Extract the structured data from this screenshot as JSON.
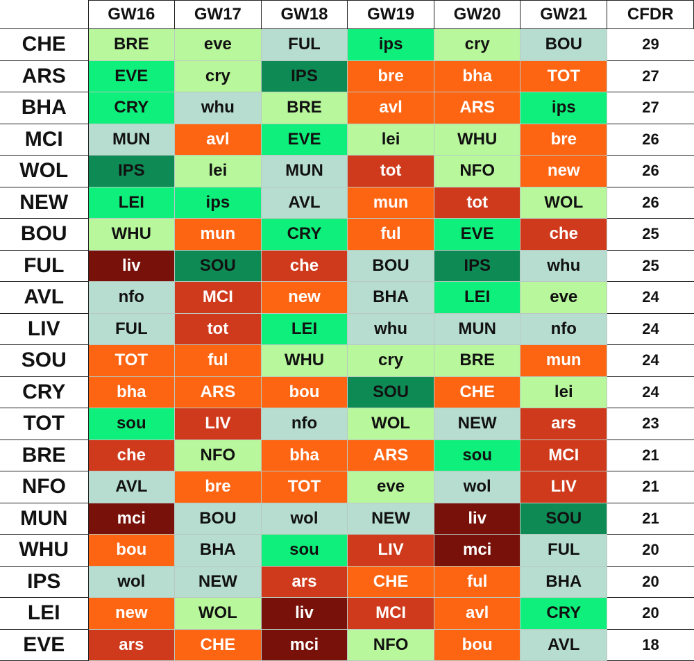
{
  "headers": [
    "",
    "GW16",
    "GW17",
    "GW18",
    "GW19",
    "GW20",
    "GW21",
    "CFDR"
  ],
  "difficulty_colors": {
    "l1": "#b7ddd0",
    "l2": "#b8f79b",
    "l3": "#0ef07b",
    "l4": "#0e8a55",
    "h1": "#fd6513",
    "h2": "#cf3a1c",
    "h3": "#771109"
  },
  "rows": [
    {
      "team": "CHE",
      "fixtures": [
        {
          "t": "BRE",
          "c": "l2"
        },
        {
          "t": "eve",
          "c": "l2"
        },
        {
          "t": "FUL",
          "c": "l1"
        },
        {
          "t": "ips",
          "c": "l3"
        },
        {
          "t": "cry",
          "c": "l2"
        },
        {
          "t": "BOU",
          "c": "l1"
        }
      ],
      "cfdr": "29"
    },
    {
      "team": "ARS",
      "fixtures": [
        {
          "t": "EVE",
          "c": "l3"
        },
        {
          "t": "cry",
          "c": "l2"
        },
        {
          "t": "IPS",
          "c": "l4"
        },
        {
          "t": "bre",
          "c": "h1"
        },
        {
          "t": "bha",
          "c": "h1"
        },
        {
          "t": "TOT",
          "c": "h1"
        }
      ],
      "cfdr": "27"
    },
    {
      "team": "BHA",
      "fixtures": [
        {
          "t": "CRY",
          "c": "l3"
        },
        {
          "t": "whu",
          "c": "l1"
        },
        {
          "t": "BRE",
          "c": "l2"
        },
        {
          "t": "avl",
          "c": "h1"
        },
        {
          "t": "ARS",
          "c": "h1"
        },
        {
          "t": "ips",
          "c": "l3"
        }
      ],
      "cfdr": "27"
    },
    {
      "team": "MCI",
      "fixtures": [
        {
          "t": "MUN",
          "c": "l1"
        },
        {
          "t": "avl",
          "c": "h1"
        },
        {
          "t": "EVE",
          "c": "l3"
        },
        {
          "t": "lei",
          "c": "l2"
        },
        {
          "t": "WHU",
          "c": "l2"
        },
        {
          "t": "bre",
          "c": "h1"
        }
      ],
      "cfdr": "26"
    },
    {
      "team": "WOL",
      "fixtures": [
        {
          "t": "IPS",
          "c": "l4"
        },
        {
          "t": "lei",
          "c": "l2"
        },
        {
          "t": "MUN",
          "c": "l1"
        },
        {
          "t": "tot",
          "c": "h2"
        },
        {
          "t": "NFO",
          "c": "l2"
        },
        {
          "t": "new",
          "c": "h1"
        }
      ],
      "cfdr": "26"
    },
    {
      "team": "NEW",
      "fixtures": [
        {
          "t": "LEI",
          "c": "l3"
        },
        {
          "t": "ips",
          "c": "l3"
        },
        {
          "t": "AVL",
          "c": "l1"
        },
        {
          "t": "mun",
          "c": "h1"
        },
        {
          "t": "tot",
          "c": "h2"
        },
        {
          "t": "WOL",
          "c": "l2"
        }
      ],
      "cfdr": "26"
    },
    {
      "team": "BOU",
      "fixtures": [
        {
          "t": "WHU",
          "c": "l2"
        },
        {
          "t": "mun",
          "c": "h1"
        },
        {
          "t": "CRY",
          "c": "l3"
        },
        {
          "t": "ful",
          "c": "h1"
        },
        {
          "t": "EVE",
          "c": "l3"
        },
        {
          "t": "che",
          "c": "h2"
        }
      ],
      "cfdr": "25"
    },
    {
      "team": "FUL",
      "fixtures": [
        {
          "t": "liv",
          "c": "h3"
        },
        {
          "t": "SOU",
          "c": "l4"
        },
        {
          "t": "che",
          "c": "h2"
        },
        {
          "t": "BOU",
          "c": "l1"
        },
        {
          "t": "IPS",
          "c": "l4"
        },
        {
          "t": "whu",
          "c": "l1"
        }
      ],
      "cfdr": "25"
    },
    {
      "team": "AVL",
      "fixtures": [
        {
          "t": "nfo",
          "c": "l1"
        },
        {
          "t": "MCI",
          "c": "h2"
        },
        {
          "t": "new",
          "c": "h1"
        },
        {
          "t": "BHA",
          "c": "l1"
        },
        {
          "t": "LEI",
          "c": "l3"
        },
        {
          "t": "eve",
          "c": "l2"
        }
      ],
      "cfdr": "24"
    },
    {
      "team": "LIV",
      "fixtures": [
        {
          "t": "FUL",
          "c": "l1"
        },
        {
          "t": "tot",
          "c": "h2"
        },
        {
          "t": "LEI",
          "c": "l3"
        },
        {
          "t": "whu",
          "c": "l1"
        },
        {
          "t": "MUN",
          "c": "l1"
        },
        {
          "t": "nfo",
          "c": "l1"
        }
      ],
      "cfdr": "24"
    },
    {
      "team": "SOU",
      "fixtures": [
        {
          "t": "TOT",
          "c": "h1"
        },
        {
          "t": "ful",
          "c": "h1"
        },
        {
          "t": "WHU",
          "c": "l2"
        },
        {
          "t": "cry",
          "c": "l2"
        },
        {
          "t": "BRE",
          "c": "l2"
        },
        {
          "t": "mun",
          "c": "h1"
        }
      ],
      "cfdr": "24"
    },
    {
      "team": "CRY",
      "fixtures": [
        {
          "t": "bha",
          "c": "h1"
        },
        {
          "t": "ARS",
          "c": "h1"
        },
        {
          "t": "bou",
          "c": "h1"
        },
        {
          "t": "SOU",
          "c": "l4"
        },
        {
          "t": "CHE",
          "c": "h1"
        },
        {
          "t": "lei",
          "c": "l2"
        }
      ],
      "cfdr": "24"
    },
    {
      "team": "TOT",
      "fixtures": [
        {
          "t": "sou",
          "c": "l3"
        },
        {
          "t": "LIV",
          "c": "h2"
        },
        {
          "t": "nfo",
          "c": "l1"
        },
        {
          "t": "WOL",
          "c": "l2"
        },
        {
          "t": "NEW",
          "c": "l1"
        },
        {
          "t": "ars",
          "c": "h2"
        }
      ],
      "cfdr": "23"
    },
    {
      "team": "BRE",
      "fixtures": [
        {
          "t": "che",
          "c": "h2"
        },
        {
          "t": "NFO",
          "c": "l2"
        },
        {
          "t": "bha",
          "c": "h1"
        },
        {
          "t": "ARS",
          "c": "h1"
        },
        {
          "t": "sou",
          "c": "l3"
        },
        {
          "t": "MCI",
          "c": "h2"
        }
      ],
      "cfdr": "21"
    },
    {
      "team": "NFO",
      "fixtures": [
        {
          "t": "AVL",
          "c": "l1"
        },
        {
          "t": "bre",
          "c": "h1"
        },
        {
          "t": "TOT",
          "c": "h1"
        },
        {
          "t": "eve",
          "c": "l2"
        },
        {
          "t": "wol",
          "c": "l1"
        },
        {
          "t": "LIV",
          "c": "h2"
        }
      ],
      "cfdr": "21"
    },
    {
      "team": "MUN",
      "fixtures": [
        {
          "t": "mci",
          "c": "h3"
        },
        {
          "t": "BOU",
          "c": "l1"
        },
        {
          "t": "wol",
          "c": "l1"
        },
        {
          "t": "NEW",
          "c": "l1"
        },
        {
          "t": "liv",
          "c": "h3"
        },
        {
          "t": "SOU",
          "c": "l4"
        }
      ],
      "cfdr": "21"
    },
    {
      "team": "WHU",
      "fixtures": [
        {
          "t": "bou",
          "c": "h1"
        },
        {
          "t": "BHA",
          "c": "l1"
        },
        {
          "t": "sou",
          "c": "l3"
        },
        {
          "t": "LIV",
          "c": "h2"
        },
        {
          "t": "mci",
          "c": "h3"
        },
        {
          "t": "FUL",
          "c": "l1"
        }
      ],
      "cfdr": "20"
    },
    {
      "team": "IPS",
      "fixtures": [
        {
          "t": "wol",
          "c": "l1"
        },
        {
          "t": "NEW",
          "c": "l1"
        },
        {
          "t": "ars",
          "c": "h2"
        },
        {
          "t": "CHE",
          "c": "h1"
        },
        {
          "t": "ful",
          "c": "h1"
        },
        {
          "t": "BHA",
          "c": "l1"
        }
      ],
      "cfdr": "20"
    },
    {
      "team": "LEI",
      "fixtures": [
        {
          "t": "new",
          "c": "h1"
        },
        {
          "t": "WOL",
          "c": "l2"
        },
        {
          "t": "liv",
          "c": "h3"
        },
        {
          "t": "MCI",
          "c": "h2"
        },
        {
          "t": "avl",
          "c": "h1"
        },
        {
          "t": "CRY",
          "c": "l3"
        }
      ],
      "cfdr": "20"
    },
    {
      "team": "EVE",
      "fixtures": [
        {
          "t": "ars",
          "c": "h2"
        },
        {
          "t": "CHE",
          "c": "h1"
        },
        {
          "t": "mci",
          "c": "h3"
        },
        {
          "t": "NFO",
          "c": "l2"
        },
        {
          "t": "bou",
          "c": "h1"
        },
        {
          "t": "AVL",
          "c": "l1"
        }
      ],
      "cfdr": "18"
    }
  ]
}
